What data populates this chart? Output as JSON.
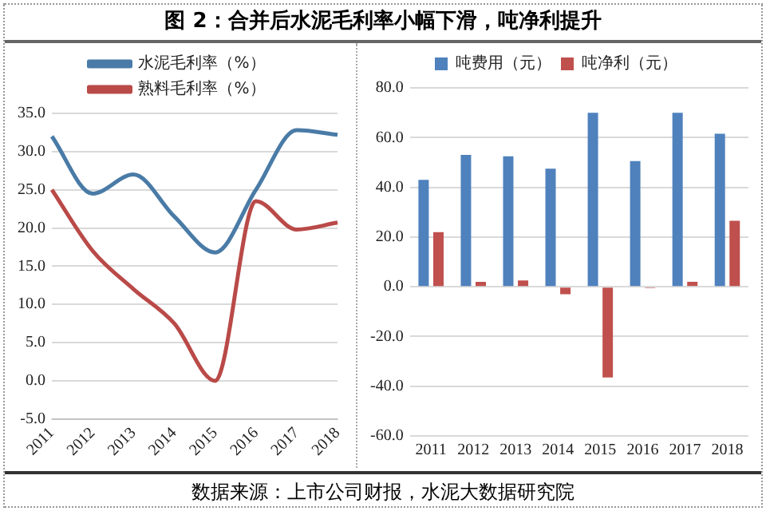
{
  "chart_data": [
    {
      "type": "line",
      "title": "图 2：合并后水泥毛利率小幅下滑，吨净利提升",
      "categories": [
        "2011",
        "2012",
        "2013",
        "2014",
        "2015",
        "2016",
        "2017",
        "2018"
      ],
      "series": [
        {
          "name": "水泥毛利率（%）",
          "color": "#4a7ba7",
          "values": [
            32,
            24.5,
            27,
            21.5,
            16.8,
            25,
            32.8,
            32.2
          ]
        },
        {
          "name": "熟料毛利率（%）",
          "color": "#b94a48",
          "values": [
            25,
            17,
            12,
            7.5,
            0,
            23.5,
            19.8,
            20.7
          ]
        }
      ],
      "ylim": [
        -5,
        35
      ],
      "yticks": [
        {
          "value": -5,
          "label": "-5.0"
        },
        {
          "value": 0,
          "label": "0.0"
        },
        {
          "value": 5,
          "label": "5.0"
        },
        {
          "value": 10,
          "label": "10.0"
        },
        {
          "value": 15,
          "label": "15.0"
        },
        {
          "value": 20,
          "label": "20.0"
        },
        {
          "value": 25,
          "label": "25.0"
        },
        {
          "value": 30,
          "label": "30.0"
        },
        {
          "value": 35,
          "label": "35.0"
        }
      ],
      "grid": "y",
      "legend": "top",
      "marker": "none"
    },
    {
      "type": "bar",
      "categories": [
        "2011",
        "2012",
        "2013",
        "2014",
        "2015",
        "2016",
        "2017",
        "2018"
      ],
      "series": [
        {
          "name": "吨费用（元）",
          "color": "#4f81bd",
          "values": [
            43,
            53,
            52.5,
            47.5,
            70,
            50.5,
            70,
            61.5
          ]
        },
        {
          "name": "吨净利（元）",
          "color": "#c0504d",
          "values": [
            22,
            2,
            2.5,
            -3,
            -36.5,
            -0.5,
            2,
            26.5
          ]
        }
      ],
      "ylim": [
        -60,
        80
      ],
      "yticks": [
        {
          "value": -60,
          "label": "-60.0"
        },
        {
          "value": -40,
          "label": "-40.0"
        },
        {
          "value": -20,
          "label": "-20.0"
        },
        {
          "value": 0,
          "label": "0.0"
        },
        {
          "value": 20,
          "label": "20.0"
        },
        {
          "value": 40,
          "label": "40.0"
        },
        {
          "value": 60,
          "label": "60.0"
        },
        {
          "value": 80,
          "label": "80.0"
        }
      ],
      "grid": "y",
      "legend": "top",
      "annotations": [
        "数据来源：上市公司财报，水泥大数据研究院"
      ]
    }
  ]
}
